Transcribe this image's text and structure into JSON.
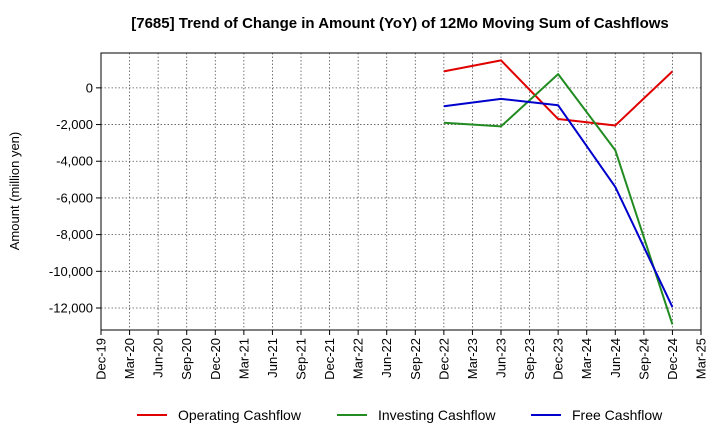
{
  "chart_data": {
    "type": "line",
    "title": "[7685]  Trend of Change in Amount (YoY) of 12Mo Moving Sum of Cashflows",
    "xlabel": "",
    "ylabel": "Amount (million yen)",
    "categories": [
      "Dec-19",
      "Mar-20",
      "Jun-20",
      "Sep-20",
      "Dec-20",
      "Mar-21",
      "Jun-21",
      "Sep-21",
      "Dec-21",
      "Mar-22",
      "Jun-22",
      "Sep-22",
      "Dec-22",
      "Mar-23",
      "Jun-23",
      "Sep-23",
      "Dec-23",
      "Mar-24",
      "Jun-24",
      "Sep-24",
      "Dec-24",
      "Mar-25"
    ],
    "ylim": [
      -13200,
      1900
    ],
    "yticks": [
      0,
      -2000,
      -4000,
      -6000,
      -8000,
      -10000,
      -12000
    ],
    "ytick_labels": [
      "0",
      "-2,000",
      "-4,000",
      "-6,000",
      "-8,000",
      "-10,000",
      "-12,000"
    ],
    "grid": true,
    "legend_position": "bottom",
    "series": [
      {
        "name": "Operating Cashflow",
        "color": "#e00000",
        "points": [
          [
            "Dec-22",
            900
          ],
          [
            "Jun-23",
            1500
          ],
          [
            "Dec-23",
            -1700
          ],
          [
            "Jun-24",
            -2050
          ],
          [
            "Dec-24",
            900
          ]
        ]
      },
      {
        "name": "Investing Cashflow",
        "color": "#228b22",
        "points": [
          [
            "Dec-22",
            -1900
          ],
          [
            "Jun-23",
            -2100
          ],
          [
            "Dec-23",
            750
          ],
          [
            "Jun-24",
            -3400
          ],
          [
            "Dec-24",
            -12900
          ]
        ]
      },
      {
        "name": "Free Cashflow",
        "color": "#0000cc",
        "points": [
          [
            "Dec-22",
            -1000
          ],
          [
            "Jun-23",
            -600
          ],
          [
            "Dec-23",
            -950
          ],
          [
            "Jun-24",
            -5400
          ],
          [
            "Dec-24",
            -11950
          ]
        ]
      }
    ]
  }
}
